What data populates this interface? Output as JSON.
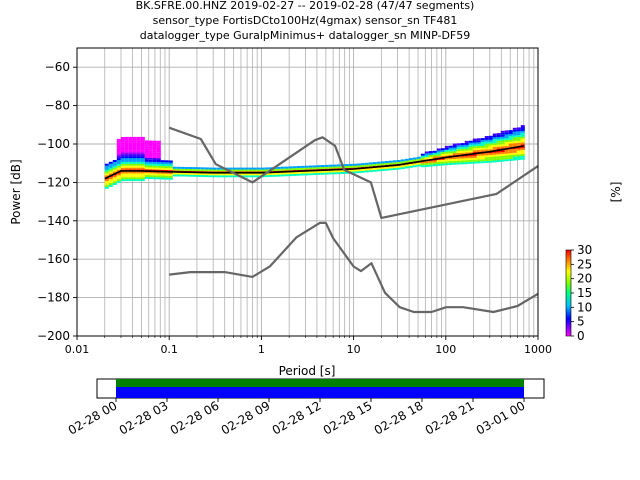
{
  "title": {
    "line1": "BK.SFRE.00.HNZ   2019-02-27 -- 2019-02-28  (47/47 segments)",
    "line2": "sensor_type FortisDCto100Hz(4gmax) sensor_sn TF481",
    "line3": "datalogger_type GuralpMinimus+ datalogger_sn MINP-DF59"
  },
  "chart_data": {
    "type": "heatmap",
    "xlabel": "Period [s]",
    "ylabel": "Power [dB]",
    "xscale": "log",
    "xlim": [
      0.01,
      1000
    ],
    "ylim": [
      -200,
      -50
    ],
    "x_ticks": [
      0.01,
      0.1,
      1,
      10,
      100,
      1000
    ],
    "x_tick_labels": [
      "0.01",
      "0.1",
      "1",
      "10",
      "100",
      "1000"
    ],
    "y_ticks": [
      -200,
      -180,
      -160,
      -140,
      -120,
      -100,
      -80,
      -60
    ],
    "y_tick_labels": [
      "−200",
      "−180",
      "−160",
      "−140",
      "−120",
      "−100",
      "−80",
      "−60"
    ],
    "grid": true,
    "noise_model_high": {
      "x": [
        0.1,
        0.22,
        0.32,
        0.8,
        3.8,
        4.6,
        6.3,
        7.9,
        15.4,
        20,
        354.8,
        1000
      ],
      "y": [
        -91.5,
        -97.4,
        -110.5,
        -120,
        -98,
        -96.5,
        -101,
        -113.5,
        -120,
        -138.5,
        -126,
        -111.5
      ]
    },
    "noise_model_low": {
      "x": [
        0.1,
        0.17,
        0.4,
        0.8,
        1.24,
        2.4,
        4.3,
        5,
        6,
        10,
        12,
        15.6,
        21.9,
        31.6,
        45,
        70,
        101,
        154,
        328,
        600,
        1000
      ],
      "y": [
        -168,
        -166.7,
        -166.7,
        -169.2,
        -163.7,
        -148.6,
        -141.1,
        -141.1,
        -149,
        -163.8,
        -166.2,
        -162.1,
        -177.5,
        -185,
        -187.5,
        -187.5,
        -185,
        -185,
        -187.5,
        -184.4,
        -178
      ]
    },
    "median_curve": {
      "x": [
        0.02,
        0.03,
        0.05,
        0.1,
        0.3,
        1,
        3,
        10,
        30,
        100,
        300,
        700
      ],
      "y": [
        -118,
        -114,
        -114,
        -114.5,
        -115,
        -115,
        -114,
        -113,
        -111,
        -107,
        -104,
        -101
      ]
    },
    "colorbar": {
      "label": "[%]",
      "min": 0,
      "max": 30,
      "ticks": [
        0,
        5,
        10,
        15,
        20,
        25,
        30
      ]
    },
    "time_axis": {
      "tick_labels": [
        "02-28 00",
        "02-28 03",
        "02-28 06",
        "02-28 09",
        "02-28 12",
        "02-28 15",
        "02-28 18",
        "02-28 21",
        "03-01 00"
      ],
      "coverage_colors": [
        "#008000",
        "#0000ff"
      ]
    }
  }
}
